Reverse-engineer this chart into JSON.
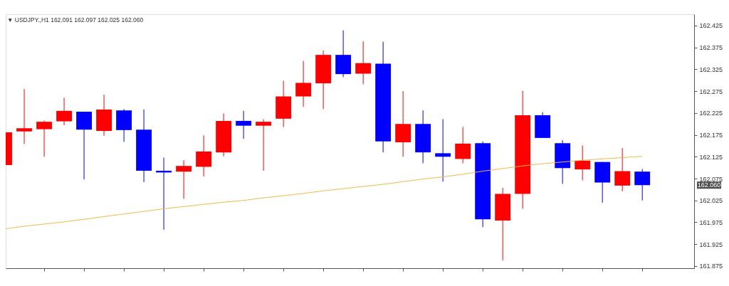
{
  "chart_data": {
    "type": "candlestick",
    "title": "▼ USDJPY.,H1  162.091 162.097 162.025 162.060",
    "categories": [
      null,
      null,
      null,
      null,
      null,
      null,
      null,
      null,
      null,
      null,
      null,
      null,
      null,
      null,
      null,
      null,
      null,
      null,
      null,
      null,
      null,
      null,
      null,
      null,
      null,
      null,
      null,
      null,
      null,
      null,
      null,
      null,
      null
    ],
    "ohlc": [
      [
        162.106,
        162.181,
        162.106,
        162.181
      ],
      [
        162.183,
        162.28,
        162.154,
        162.19
      ],
      [
        162.188,
        162.208,
        162.125,
        162.205
      ],
      [
        162.206,
        162.26,
        162.197,
        162.23
      ],
      [
        162.228,
        162.228,
        162.073,
        162.187
      ],
      [
        162.184,
        162.267,
        162.173,
        162.233
      ],
      [
        162.231,
        162.234,
        162.159,
        162.186
      ],
      [
        162.187,
        162.233,
        162.067,
        162.093
      ],
      [
        162.093,
        162.123,
        161.958,
        162.089
      ],
      [
        162.091,
        162.117,
        162.029,
        162.104
      ],
      [
        162.102,
        162.174,
        162.08,
        162.137
      ],
      [
        162.135,
        162.224,
        162.126,
        162.207
      ],
      [
        162.207,
        162.23,
        162.166,
        162.196
      ],
      [
        162.196,
        162.211,
        162.093,
        162.205
      ],
      [
        162.212,
        162.299,
        162.193,
        162.263
      ],
      [
        162.263,
        162.344,
        162.239,
        162.294
      ],
      [
        162.293,
        162.368,
        162.234,
        162.358
      ],
      [
        162.358,
        162.414,
        162.307,
        162.314
      ],
      [
        162.315,
        162.389,
        162.291,
        162.339
      ],
      [
        162.338,
        162.388,
        162.135,
        162.16
      ],
      [
        162.158,
        162.275,
        162.125,
        162.2
      ],
      [
        162.2,
        162.231,
        162.11,
        162.135
      ],
      [
        162.133,
        162.211,
        162.068,
        162.125
      ],
      [
        162.12,
        162.193,
        162.11,
        162.155
      ],
      [
        162.156,
        162.16,
        161.964,
        161.982
      ],
      [
        161.979,
        162.054,
        161.888,
        162.04
      ],
      [
        162.04,
        162.276,
        162.006,
        162.22
      ],
      [
        162.22,
        162.227,
        162.168,
        162.168
      ],
      [
        162.156,
        162.163,
        162.063,
        162.099
      ],
      [
        162.096,
        162.151,
        162.071,
        162.116
      ],
      [
        162.113,
        162.113,
        162.02,
        162.066
      ],
      [
        162.059,
        162.145,
        162.046,
        162.092
      ],
      [
        162.091,
        162.097,
        162.025,
        162.06
      ]
    ],
    "colors": [
      "#ff0000",
      "#ff0000",
      "#ff0000",
      "#ff0000",
      "#0000ff",
      "#ff0000",
      "#0000ff",
      "#0000ff",
      "#0000ff",
      "#ff0000",
      "#ff0000",
      "#ff0000",
      "#0000ff",
      "#ff0000",
      "#ff0000",
      "#ff0000",
      "#ff0000",
      "#0000ff",
      "#ff0000",
      "#0000ff",
      "#ff0000",
      "#0000ff",
      "#0000ff",
      "#ff0000",
      "#0000ff",
      "#ff0000",
      "#ff0000",
      "#0000ff",
      "#0000ff",
      "#ff0000",
      "#0000ff",
      "#ff0000",
      "#0000ff"
    ],
    "series": [
      {
        "type": "line",
        "color": "#f2b84b",
        "values": [
          161.96,
          161.966,
          161.971,
          161.976,
          161.982,
          161.988,
          161.994,
          162.0,
          162.006,
          162.011,
          162.016,
          162.021,
          162.025,
          162.031,
          162.036,
          162.041,
          162.047,
          162.052,
          162.057,
          162.062,
          162.068,
          162.074,
          162.079,
          162.085,
          162.092,
          162.098,
          162.104,
          162.109,
          162.113,
          162.117,
          162.12,
          162.123,
          162.126
        ]
      }
    ],
    "ylim": [
      161.87,
      162.451
    ],
    "yticks": [
      162.425,
      162.375,
      162.325,
      162.275,
      162.225,
      162.175,
      162.125,
      162.075,
      162.025,
      161.975,
      161.925,
      161.875
    ],
    "tick_labels": "y",
    "annotations": [
      "162.060"
    ]
  }
}
